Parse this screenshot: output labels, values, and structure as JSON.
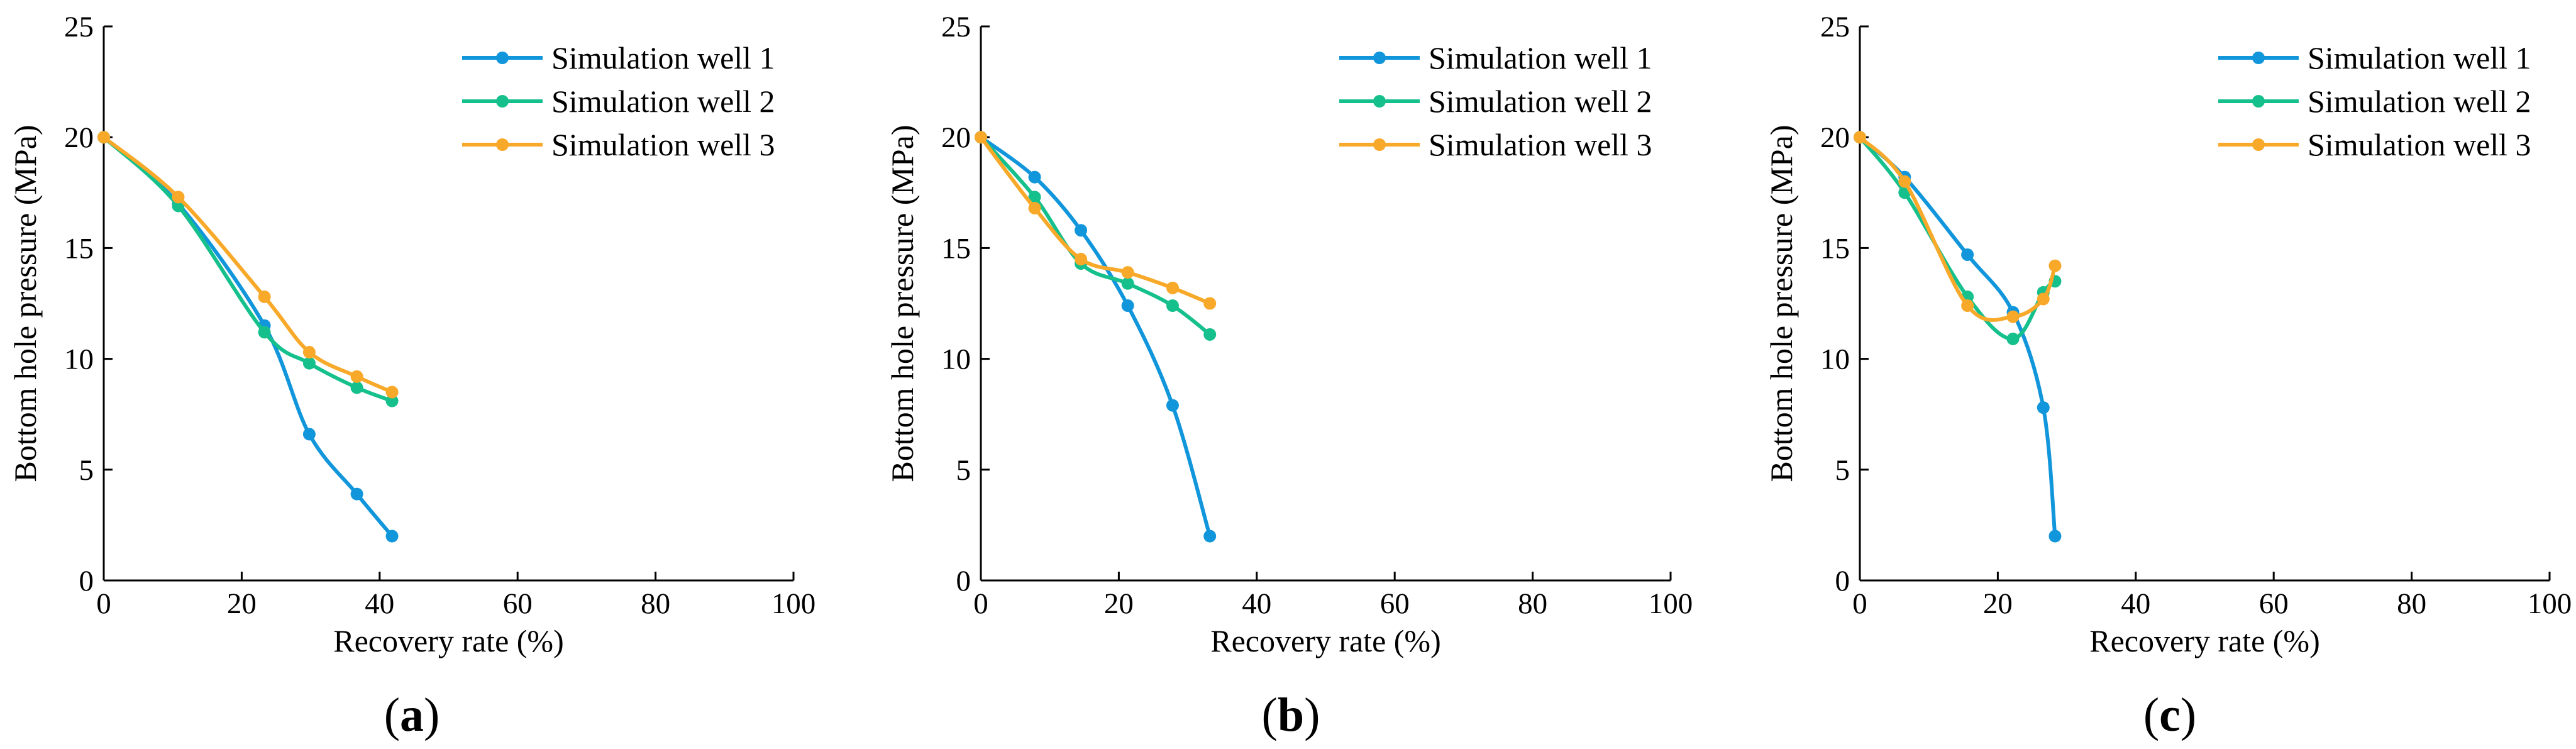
{
  "colors": {
    "series_1": "#1296DB",
    "series_2": "#16C08C",
    "series_3": "#F8A92A"
  },
  "chart_data": [
    {
      "type": "line",
      "panel_label": "(a)",
      "xlabel": "Recovery rate (%)",
      "ylabel": "Bottom hole pressure (MPa)",
      "xlim": [
        0,
        100
      ],
      "ylim": [
        0,
        25
      ],
      "xticks": [
        "0",
        "20",
        "40",
        "60",
        "80",
        "100"
      ],
      "yticks": [
        "0",
        "5",
        "10",
        "15",
        "20",
        "25"
      ],
      "legend_position": "top-right",
      "series": [
        {
          "name": "Simulation well 1",
          "x": [
            0,
            10.8,
            23.3,
            29.8,
            36.7,
            41.8
          ],
          "y": [
            20,
            17,
            11.5,
            6.6,
            3.9,
            2.0
          ]
        },
        {
          "name": "Simulation well 2",
          "x": [
            0,
            10.8,
            23.3,
            29.8,
            36.7,
            41.8
          ],
          "y": [
            20,
            16.9,
            11.2,
            9.8,
            8.7,
            8.1
          ]
        },
        {
          "name": "Simulation well 3",
          "x": [
            0,
            10.8,
            23.3,
            29.8,
            36.7,
            41.8
          ],
          "y": [
            20,
            17.3,
            12.8,
            10.3,
            9.2,
            8.5
          ]
        }
      ]
    },
    {
      "type": "line",
      "panel_label": "(b)",
      "xlabel": "Recovery rate (%)",
      "ylabel": "Bottom hole pressure (MPa)",
      "xlim": [
        0,
        100
      ],
      "ylim": [
        0,
        25
      ],
      "xticks": [
        "0",
        "20",
        "40",
        "60",
        "80",
        "100"
      ],
      "yticks": [
        "0",
        "5",
        "10",
        "15",
        "20",
        "25"
      ],
      "legend_position": "top-right",
      "series": [
        {
          "name": "Simulation well 1",
          "x": [
            0,
            7.8,
            14.5,
            21.3,
            27.8,
            33.2
          ],
          "y": [
            20,
            18.2,
            15.8,
            12.4,
            7.9,
            2.0
          ]
        },
        {
          "name": "Simulation well 2",
          "x": [
            0,
            7.8,
            14.5,
            21.3,
            27.8,
            33.2
          ],
          "y": [
            20,
            17.3,
            14.3,
            13.4,
            12.4,
            11.1
          ]
        },
        {
          "name": "Simulation well 3",
          "x": [
            0,
            7.8,
            14.5,
            21.3,
            27.8,
            33.2
          ],
          "y": [
            20,
            16.8,
            14.5,
            13.9,
            13.2,
            12.5
          ]
        }
      ]
    },
    {
      "type": "line",
      "panel_label": "(c)",
      "xlabel": "Recovery rate (%)",
      "ylabel": "Bottom hole pressure (MPa)",
      "xlim": [
        0,
        100
      ],
      "ylim": [
        0,
        25
      ],
      "xticks": [
        "0",
        "20",
        "40",
        "60",
        "80",
        "100"
      ],
      "yticks": [
        "0",
        "5",
        "10",
        "15",
        "20",
        "25"
      ],
      "legend_position": "top-right",
      "series": [
        {
          "name": "Simulation well 1",
          "x": [
            0,
            6.5,
            15.6,
            22.2,
            26.6,
            28.3
          ],
          "y": [
            20,
            18.2,
            14.7,
            12.1,
            7.8,
            2.0
          ]
        },
        {
          "name": "Simulation well 2",
          "x": [
            0,
            6.5,
            15.6,
            22.2,
            26.6,
            28.3
          ],
          "y": [
            20,
            17.5,
            12.8,
            10.9,
            13.0,
            13.5
          ]
        },
        {
          "name": "Simulation well 3",
          "x": [
            0,
            6.5,
            15.6,
            22.2,
            26.6,
            28.3
          ],
          "y": [
            20,
            18.0,
            12.4,
            11.9,
            12.7,
            14.2
          ]
        }
      ]
    }
  ]
}
